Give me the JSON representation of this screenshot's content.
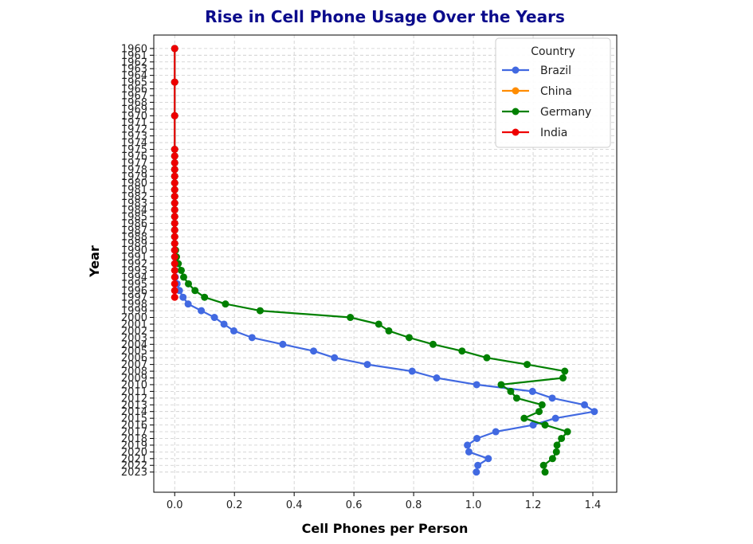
{
  "chart_data": {
    "type": "line",
    "title": "Rise in Cell Phone Usage Over the Years",
    "xlabel": "Cell Phones per Person",
    "ylabel": "Year",
    "orientation": "horizontal (years on y-axis, value on x-axis)",
    "xlim": [
      -0.07,
      1.48
    ],
    "ylim": [
      1958,
      2026
    ],
    "y_inverted": true,
    "x_ticks": [
      0.0,
      0.2,
      0.4,
      0.6,
      0.8,
      1.0,
      1.2,
      1.4
    ],
    "x_tick_labels": [
      "0.0",
      "0.2",
      "0.4",
      "0.6",
      "0.8",
      "1.0",
      "1.2",
      "1.4"
    ],
    "y_ticks": [
      1960,
      1961,
      1962,
      1963,
      1964,
      1965,
      1966,
      1967,
      1968,
      1969,
      1970,
      1971,
      1972,
      1973,
      1974,
      1975,
      1976,
      1977,
      1978,
      1979,
      1980,
      1981,
      1982,
      1983,
      1984,
      1985,
      1986,
      1987,
      1988,
      1989,
      1990,
      1991,
      1992,
      1993,
      1994,
      1995,
      1996,
      1997,
      1998,
      1999,
      2000,
      2001,
      2002,
      2003,
      2004,
      2005,
      2006,
      2007,
      2008,
      2009,
      2010,
      2011,
      2012,
      2013,
      2014,
      2015,
      2016,
      2017,
      2018,
      2019,
      2020,
      2021,
      2022,
      2023
    ],
    "y_tick_labels": [
      "1960",
      "1961",
      "1962",
      "1963",
      "1964",
      "1965",
      "1966",
      "1967",
      "1968",
      "1969",
      "1970",
      "1971",
      "1972",
      "1973",
      "1974",
      "1975",
      "1976",
      "1977",
      "1978",
      "1979",
      "1980",
      "1981",
      "1982",
      "1983",
      "1984",
      "1985",
      "1986",
      "1987",
      "1988",
      "1989",
      "1990",
      "1991",
      "1992",
      "1993",
      "1994",
      "1995",
      "1996",
      "1997",
      "1998",
      "1999",
      "2000",
      "2001",
      "2002",
      "2003",
      "2004",
      "2005",
      "2006",
      "2007",
      "2008",
      "2009",
      "2010",
      "2011",
      "2012",
      "2013",
      "2014",
      "2015",
      "2016",
      "2017",
      "2018",
      "2019",
      "2020",
      "2021",
      "2022",
      "2023"
    ],
    "grid": true,
    "legend": {
      "title": "Country",
      "placement": "top-right"
    },
    "series": [
      {
        "name": "Brazil",
        "color": "#4169e1",
        "years": [
          1960,
          1965,
          1970,
          1975,
          1976,
          1977,
          1978,
          1979,
          1980,
          1981,
          1982,
          1983,
          1984,
          1985,
          1986,
          1987,
          1988,
          1989,
          1990,
          1991,
          1992,
          1993,
          1994,
          1995,
          1996,
          1997,
          1998,
          1999,
          2000,
          2001,
          2002,
          2003,
          2004,
          2005,
          2006,
          2007,
          2008,
          2009,
          2010,
          2011,
          2012,
          2013,
          2014,
          2015,
          2016,
          2017,
          2018,
          2019,
          2020,
          2021,
          2022,
          2023
        ],
        "values": [
          0,
          0,
          0,
          0,
          0,
          0,
          0,
          0,
          0,
          0,
          0,
          0,
          0,
          0,
          0,
          0,
          0,
          0,
          0,
          0,
          0,
          0.001,
          0.002,
          0.008,
          0.016,
          0.028,
          0.045,
          0.089,
          0.133,
          0.165,
          0.198,
          0.259,
          0.362,
          0.465,
          0.535,
          0.645,
          0.795,
          0.877,
          1.011,
          1.198,
          1.264,
          1.372,
          1.405,
          1.275,
          1.2,
          1.075,
          1.012,
          0.98,
          0.985,
          1.05,
          1.015,
          1.01
        ]
      },
      {
        "name": "China",
        "color": "#ff8c00",
        "years": [],
        "values": []
      },
      {
        "name": "Germany",
        "color": "#008000",
        "years": [
          1960,
          1965,
          1970,
          1975,
          1976,
          1977,
          1978,
          1979,
          1980,
          1981,
          1982,
          1983,
          1984,
          1985,
          1986,
          1987,
          1988,
          1989,
          1990,
          1991,
          1992,
          1993,
          1994,
          1995,
          1996,
          1997,
          1998,
          1999,
          2000,
          2001,
          2002,
          2003,
          2004,
          2005,
          2006,
          2007,
          2008,
          2009,
          2010,
          2011,
          2012,
          2013,
          2014,
          2015,
          2016,
          2017,
          2018,
          2019,
          2020,
          2021,
          2022,
          2023
        ],
        "values": [
          0,
          0,
          0,
          0,
          0,
          0,
          0,
          0,
          0,
          0,
          0,
          0,
          0,
          0,
          0,
          0,
          0,
          0,
          0.003,
          0.006,
          0.012,
          0.022,
          0.03,
          0.046,
          0.068,
          0.1,
          0.17,
          0.286,
          0.588,
          0.683,
          0.717,
          0.785,
          0.865,
          0.962,
          1.045,
          1.18,
          1.306,
          1.3,
          1.093,
          1.125,
          1.145,
          1.23,
          1.22,
          1.17,
          1.24,
          1.315,
          1.295,
          1.28,
          1.278,
          1.265,
          1.235,
          1.24
        ]
      },
      {
        "name": "India",
        "color": "#ee0000",
        "years": [
          1960,
          1965,
          1970,
          1975,
          1976,
          1977,
          1978,
          1979,
          1980,
          1981,
          1982,
          1983,
          1984,
          1985,
          1986,
          1987,
          1988,
          1989,
          1990,
          1991,
          1992,
          1993,
          1994,
          1995,
          1996,
          1997
        ],
        "values": [
          0,
          0,
          0,
          0,
          0,
          0,
          0,
          0,
          0,
          0,
          0,
          0,
          0,
          0,
          0,
          0,
          0,
          0,
          0,
          0,
          0,
          0,
          0,
          0,
          0,
          0
        ]
      }
    ]
  }
}
